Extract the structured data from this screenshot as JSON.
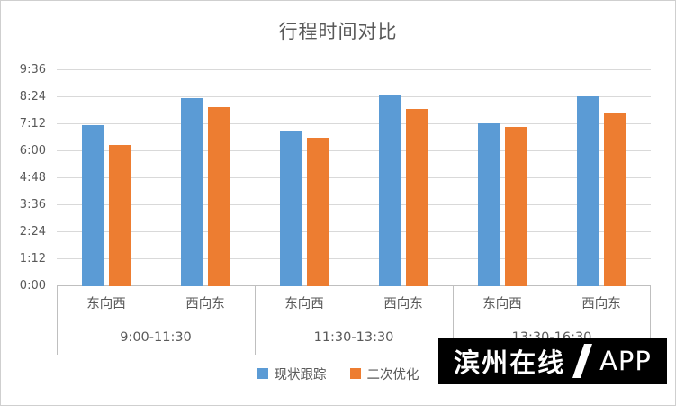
{
  "chart_data": {
    "type": "bar",
    "title": "行程时间对比",
    "y_ticks": [
      "0:00",
      "1:12",
      "2:24",
      "3:36",
      "4:48",
      "6:00",
      "7:12",
      "8:24",
      "9:36"
    ],
    "y_max_seconds": 576,
    "ylim": [
      "0:00",
      "9:36"
    ],
    "grid": true,
    "legend_position": "bottom",
    "groups": [
      "9:00-11:30",
      "11:30-13:30",
      "13:30-16:30"
    ],
    "categories": [
      "东向西",
      "西向东",
      "东向西",
      "西向东",
      "东向西",
      "西向东"
    ],
    "series": [
      {
        "name": "现状跟踪",
        "color": "#5B9BD5",
        "values_seconds": [
          430,
          502,
          413,
          509,
          434,
          506
        ],
        "value_labels": [
          "7:10",
          "8:22",
          "6:53",
          "8:29",
          "7:14",
          "8:26"
        ]
      },
      {
        "name": "二次优化",
        "color": "#ED7D31",
        "values_seconds": [
          377,
          477,
          396,
          473,
          425,
          460
        ],
        "value_labels": [
          "6:17",
          "7:57",
          "6:36",
          "7:53",
          "7:05",
          "7:40"
        ]
      }
    ]
  },
  "watermark": {
    "brand": "滨州在线",
    "app": "APP"
  }
}
